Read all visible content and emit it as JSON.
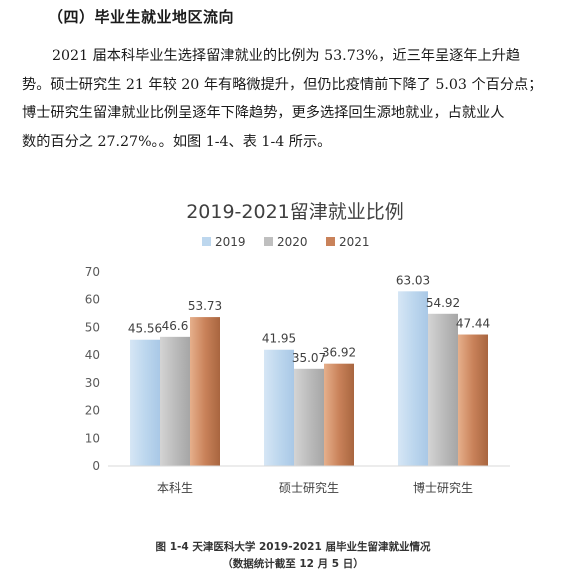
{
  "section": {
    "heading": "（四）毕业生就业地区流向",
    "lines": [
      "2021 届本科毕业生选择留津就业的比例为 53.73%，近三年呈逐年上升趋",
      "势。硕士研究生 21 年较 20 年有略微提升，但仍比疫情前下降了 5.03 个百分点；",
      "博士研究生留津就业比例呈逐年下降趋势，更多选择回生源地就业，占就业人",
      "数的百分之 27.27%。。如图 1-4、表 1-4 所示。"
    ]
  },
  "chart_data": {
    "type": "bar",
    "title": "2019-2021留津就业比例",
    "categories": [
      "本科生",
      "硕士研究生",
      "博士研究生"
    ],
    "series": [
      {
        "name": "2019",
        "values": [
          45.56,
          41.95,
          63.03
        ],
        "color": "#bdd7ee"
      },
      {
        "name": "2020",
        "values": [
          46.6,
          35.07,
          54.92
        ],
        "color": "#bfbfbf"
      },
      {
        "name": "2021",
        "values": [
          53.73,
          36.92,
          47.44
        ],
        "color": "#c9825a"
      }
    ],
    "ylim": [
      0,
      70
    ],
    "yticks": [
      0,
      10,
      20,
      30,
      40,
      50,
      60,
      70
    ],
    "legend_position": "top",
    "grid": false
  },
  "caption": {
    "line1": "图 1-4   天津医科大学 2019-2021 届毕业生留津就业情况",
    "line2": "（数据统计截至 12 月 5 日）"
  }
}
